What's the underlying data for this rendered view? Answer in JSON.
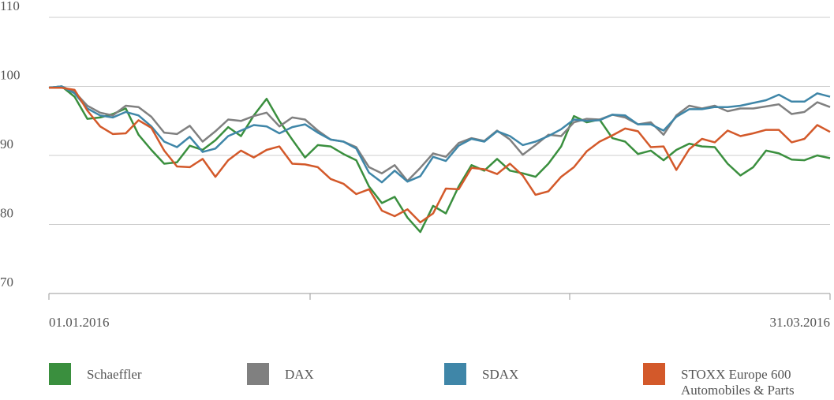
{
  "chart_data": {
    "type": "line",
    "categories": [
      "01.01.2016",
      null,
      null,
      null,
      null,
      null,
      null,
      null,
      null,
      null,
      null,
      null,
      null,
      null,
      null,
      null,
      null,
      null,
      null,
      null,
      null,
      null,
      null,
      null,
      null,
      null,
      null,
      null,
      null,
      null,
      null,
      null,
      null,
      null,
      null,
      null,
      null,
      null,
      null,
      null,
      null,
      null,
      null,
      null,
      null,
      null,
      null,
      null,
      null,
      null,
      null,
      null,
      null,
      null,
      null,
      null,
      null,
      null,
      null,
      null,
      null,
      "31.03.2016"
    ],
    "series": [
      {
        "name": "Schaeffler",
        "color": "#3a8f3e",
        "values": [
          99.8,
          100,
          98.5,
          95.3,
          95.5,
          96,
          96.8,
          93,
          90.8,
          88.8,
          89,
          91.4,
          90.8,
          92.2,
          94.1,
          92.8,
          95.8,
          98.2,
          95,
          92.3,
          89.7,
          91.5,
          91.3,
          90.2,
          89.3,
          85.5,
          83.1,
          84,
          81,
          78.9,
          82.7,
          81.6,
          85.5,
          88.6,
          87.8,
          89.5,
          87.8,
          87.4,
          86.9,
          88.8,
          91.3,
          95.7,
          94.8,
          95.2,
          92.5,
          92,
          90.2,
          90.7,
          89.3,
          90.8,
          91.7,
          91.3,
          91.2,
          88.8,
          87.1,
          88.3,
          90.7,
          90.3,
          89.4,
          89.3,
          90,
          89.6
        ]
      },
      {
        "name": "DAX",
        "color": "#808080",
        "values": [
          99.8,
          100,
          99.2,
          97.2,
          96.2,
          95.8,
          97.2,
          97,
          95.6,
          93.3,
          93.1,
          94.3,
          92,
          93.5,
          95.2,
          95,
          95.7,
          96.2,
          94.2,
          95.5,
          95.2,
          93.6,
          92.3,
          92,
          91.2,
          88.3,
          87.4,
          88.6,
          86.3,
          88.2,
          90.3,
          89.8,
          91.8,
          92.5,
          92.1,
          93.6,
          92.3,
          90.1,
          91.5,
          93,
          92.8,
          94.8,
          95.3,
          95.2,
          95.9,
          95.5,
          94.5,
          94.8,
          93,
          95.8,
          97.2,
          96.8,
          97.2,
          96.4,
          96.8,
          96.8,
          97.1,
          97.4,
          96,
          96.3,
          97.7,
          97
        ]
      },
      {
        "name": "SDAX",
        "color": "#3f86a8",
        "values": [
          99.8,
          100,
          99,
          96.8,
          95.8,
          95.5,
          96.3,
          95.8,
          94.2,
          92,
          91.2,
          92.7,
          90.5,
          91,
          92.8,
          93.6,
          94.4,
          94.2,
          93.2,
          94.1,
          94.5,
          93.3,
          92.3,
          92,
          91,
          87.5,
          86.1,
          87.8,
          86.2,
          87,
          89.8,
          89.2,
          91.4,
          92.4,
          92,
          93.5,
          92.8,
          91.5,
          92,
          92.8,
          93.8,
          95.2,
          95,
          95.1,
          95.9,
          95.8,
          94.5,
          94.5,
          93.6,
          95.6,
          96.7,
          96.7,
          97,
          97,
          97.2,
          97.6,
          98,
          98.8,
          97.8,
          97.8,
          99,
          98.5
        ]
      },
      {
        "name": "STOXX Europe 600 Automobiles & Parts",
        "color": "#d3592a",
        "values": [
          99.8,
          99.8,
          99.5,
          96.5,
          94.2,
          93.1,
          93.2,
          95.1,
          94,
          90.7,
          88.4,
          88.3,
          89.5,
          86.9,
          89.3,
          90.7,
          89.7,
          90.8,
          91.3,
          88.8,
          88.7,
          88.3,
          86.6,
          85.9,
          84.4,
          85.1,
          82,
          81.2,
          82.2,
          80.3,
          81.6,
          85.2,
          85.1,
          88.2,
          88,
          87.3,
          88.8,
          87.1,
          84.3,
          84.8,
          86.9,
          88.3,
          90.6,
          92,
          92.9,
          93.9,
          93.5,
          91.2,
          91.3,
          87.9,
          90.9,
          92.4,
          91.9,
          93.6,
          92.8,
          93.2,
          93.7,
          93.7,
          91.9,
          92.4,
          94.4,
          93.4
        ]
      }
    ],
    "ylim": [
      70,
      110
    ],
    "yticks": [
      70,
      80,
      90,
      100,
      110
    ],
    "grid": true
  }
}
